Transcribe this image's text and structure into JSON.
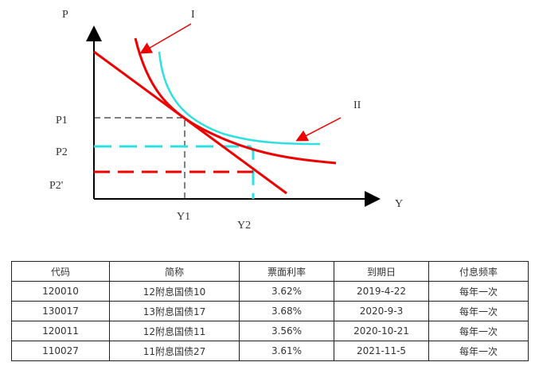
{
  "diagram": {
    "labels": {
      "p_axis": "P",
      "y_axis": "Y",
      "p1": "P1",
      "p2": "P2",
      "p2_prime": "P2'",
      "y1": "Y1",
      "y2": "Y2",
      "curve1": "I",
      "curve2": "II"
    }
  },
  "table": {
    "header": [
      "代码",
      "简称",
      "票面利率",
      "到期日",
      "付息频率"
    ],
    "rows": [
      [
        "120010",
        "12附息国债10",
        "3.62%",
        "2019-4-22",
        "每年一次"
      ],
      [
        "130017",
        "13附息国债17",
        "3.68%",
        "2020-9-3",
        "每年一次"
      ],
      [
        "120011",
        "12附息国债11",
        "3.56%",
        "2020-10-21",
        "每年一次"
      ],
      [
        "110027",
        "11附息国债27",
        "3.61%",
        "2021-11-5",
        "每年一次"
      ]
    ]
  }
}
